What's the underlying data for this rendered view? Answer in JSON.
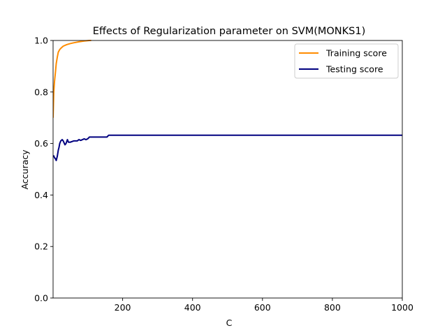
{
  "chart_data": {
    "type": "line",
    "title": "Effects of Regularization parameter on SVM(MONKS1)",
    "xlabel": "C",
    "ylabel": "Accuracy",
    "xlim": [
      1,
      1000
    ],
    "ylim": [
      0,
      1
    ],
    "xticks": [
      200,
      400,
      600,
      800,
      1000
    ],
    "yticks": [
      0.0,
      0.2,
      0.4,
      0.6,
      0.8,
      1.0
    ],
    "grid": false,
    "legend_position": "top-right",
    "series": [
      {
        "name": "Training score",
        "color": "#ff8c00",
        "x": [
          1,
          3,
          5,
          8,
          10,
          13,
          16,
          20,
          25,
          30,
          40,
          50,
          60,
          75,
          90,
          105,
          110
        ],
        "y": [
          0.7,
          0.8,
          0.84,
          0.88,
          0.91,
          0.935,
          0.955,
          0.965,
          0.972,
          0.978,
          0.984,
          0.988,
          0.991,
          0.995,
          0.998,
          1.0,
          1.0
        ]
      },
      {
        "name": "Testing score",
        "color": "#000080",
        "x": [
          1,
          3,
          5,
          8,
          10,
          13,
          16,
          18,
          20,
          23,
          27,
          30,
          35,
          38,
          42,
          45,
          50,
          60,
          70,
          75,
          80,
          90,
          95,
          100,
          105,
          110,
          120,
          140,
          155,
          160,
          200,
          400,
          600,
          800,
          1000
        ],
        "y": [
          0.55,
          0.552,
          0.545,
          0.54,
          0.534,
          0.55,
          0.575,
          0.585,
          0.6,
          0.61,
          0.615,
          0.61,
          0.595,
          0.6,
          0.615,
          0.605,
          0.605,
          0.61,
          0.61,
          0.615,
          0.612,
          0.618,
          0.615,
          0.618,
          0.625,
          0.625,
          0.625,
          0.625,
          0.625,
          0.632,
          0.632,
          0.632,
          0.632,
          0.632,
          0.632
        ]
      }
    ]
  }
}
